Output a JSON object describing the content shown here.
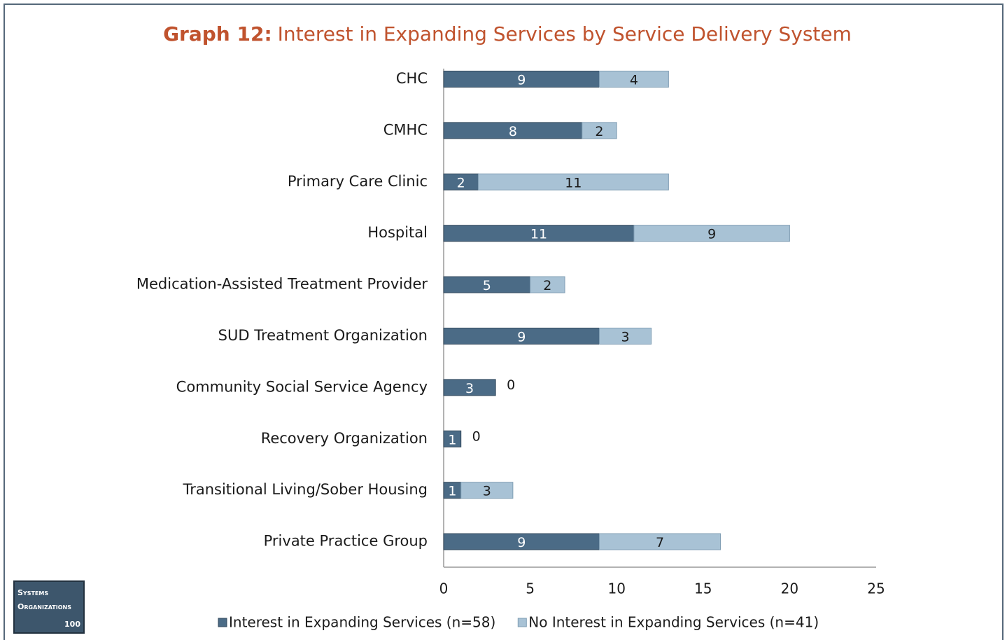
{
  "chart_data": {
    "type": "stacked_barh",
    "title_prefix": "Graph 12:",
    "title": "Interest in Expanding Services by Service Delivery System",
    "categories": [
      "CHC",
      "CMHC",
      "Primary Care Clinic",
      "Hospital",
      "Medication-Assisted Treatment Provider",
      "SUD Treatment Organization",
      "Community Social Service Agency",
      "Recovery Organization",
      "Transitional Living/Sober Housing",
      "Private Practice Group"
    ],
    "series": [
      {
        "name": "Interest in Expanding Services (n=58)",
        "color": "#4b6b86",
        "values": [
          9,
          8,
          2,
          11,
          5,
          9,
          3,
          1,
          1,
          9
        ]
      },
      {
        "name": "No Interest in Expanding Services (n=41)",
        "color": "#a8c2d5",
        "values": [
          4,
          2,
          11,
          9,
          2,
          3,
          0,
          0,
          3,
          7
        ]
      }
    ],
    "xlim": [
      0,
      25
    ],
    "xticks": [
      0,
      5,
      10,
      15,
      20,
      25
    ],
    "grid": false,
    "legend": "bottom"
  },
  "badge": {
    "line1": "Systems",
    "line2": "Organizations",
    "number": "100"
  }
}
